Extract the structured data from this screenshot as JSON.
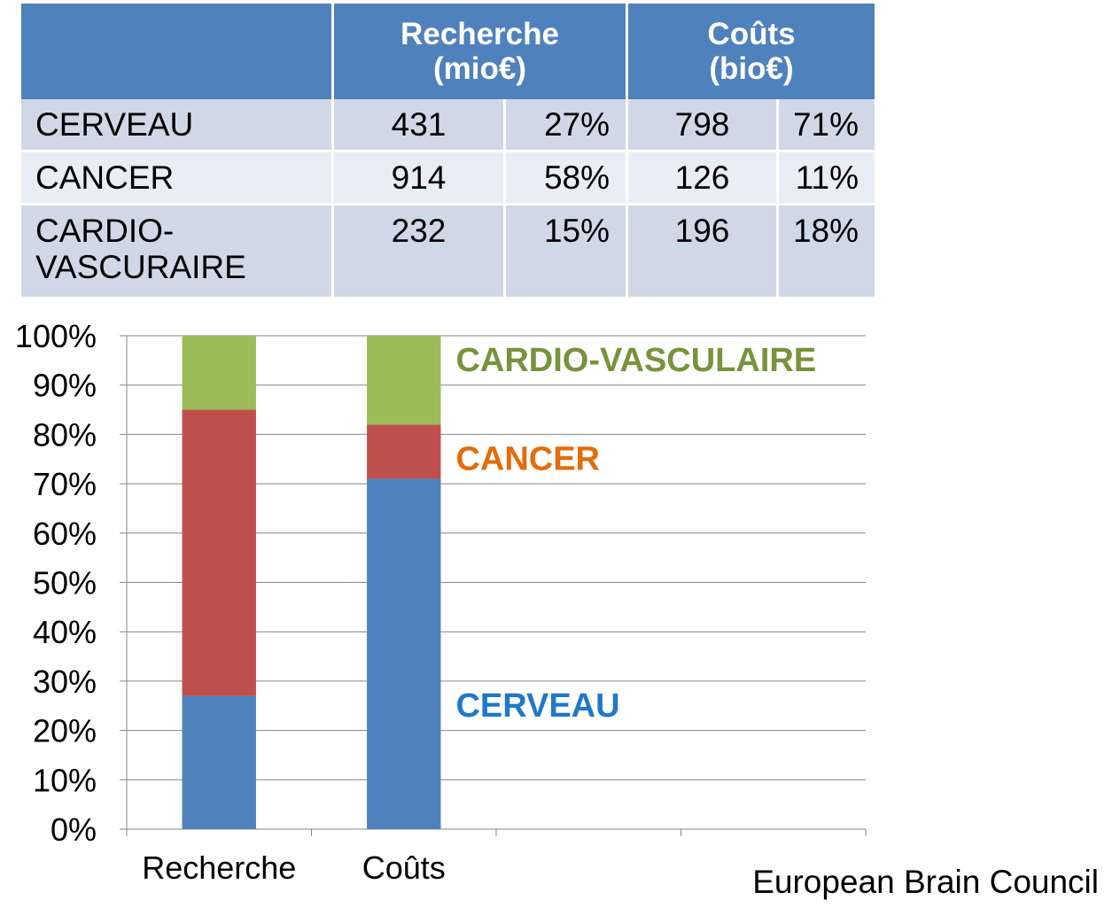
{
  "table": {
    "headers": [
      {
        "line1": "",
        "line2": ""
      },
      {
        "line1": "Recherche",
        "line2": "(mio€)"
      },
      {
        "line1": "Coûts",
        "line2": "(bio€)"
      }
    ],
    "rows": [
      {
        "name": "CERVEAU",
        "name2": "",
        "recherche": "431",
        "recherche_pct": "27%",
        "couts": "798",
        "couts_pct": "71%"
      },
      {
        "name": "CANCER",
        "name2": "",
        "recherche": "914",
        "recherche_pct": "58%",
        "couts": "126",
        "couts_pct": "11%"
      },
      {
        "name": "CARDIO-",
        "name2": "VASCURAIRE",
        "recherche": "232",
        "recherche_pct": "15%",
        "couts": "196",
        "couts_pct": "18%"
      }
    ]
  },
  "chart_data": {
    "type": "bar",
    "stacked": true,
    "categories": [
      "Recherche",
      "Coûts"
    ],
    "series": [
      {
        "name": "CERVEAU",
        "values": [
          27,
          71
        ],
        "color": "#4f81bd",
        "label_color": "#1f78c8"
      },
      {
        "name": "CANCER",
        "values": [
          58,
          11
        ],
        "color": "#c0504d",
        "label_color": "#e46c0a"
      },
      {
        "name": "CARDIO-VASCULAIRE",
        "values": [
          15,
          18
        ],
        "color": "#9bbb59",
        "label_color": "#77933c"
      }
    ],
    "y_ticks": [
      "0%",
      "10%",
      "20%",
      "30%",
      "40%",
      "50%",
      "60%",
      "70%",
      "80%",
      "90%",
      "100%"
    ],
    "ylim": [
      0,
      100
    ],
    "grid": true,
    "legend": "inline-right",
    "slots": 4
  },
  "credit": "European Brain Council"
}
